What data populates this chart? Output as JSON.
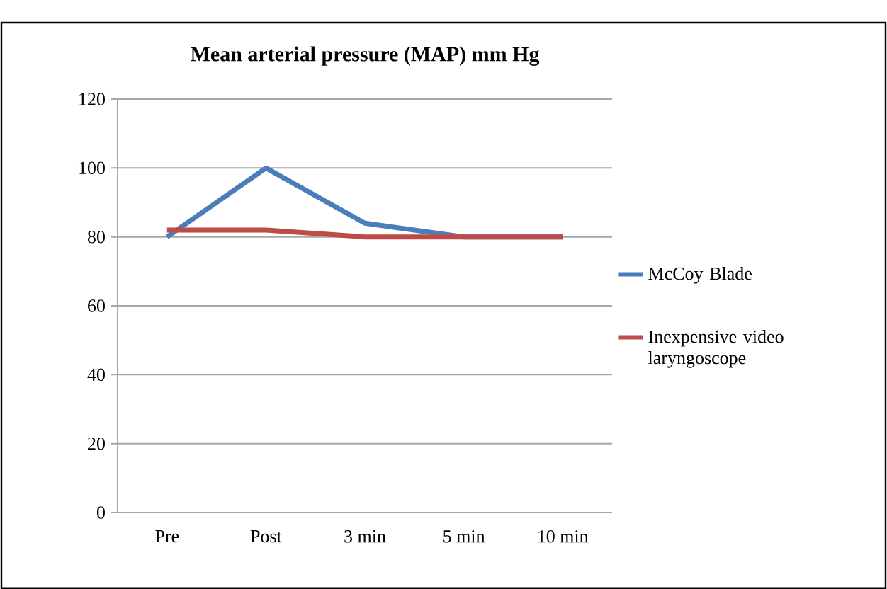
{
  "chart_data": {
    "type": "line",
    "title": "Mean arterial pressure (MAP)  mm Hg",
    "categories": [
      "Pre",
      "Post",
      "3 min",
      "5 min",
      "10 min"
    ],
    "series": [
      {
        "name": "McCoy Blade",
        "color": "#4a7ebb",
        "values": [
          80,
          100,
          84,
          80,
          80
        ]
      },
      {
        "name": "Inexpensive video laryngoscope",
        "color": "#be4b48",
        "values": [
          82,
          82,
          80,
          80,
          80
        ]
      }
    ],
    "ylim": [
      0,
      120
    ],
    "yticks": [
      0,
      20,
      40,
      60,
      80,
      100,
      120
    ],
    "grid": "y",
    "legend": "right",
    "marker": "none",
    "line_style": "solid"
  }
}
